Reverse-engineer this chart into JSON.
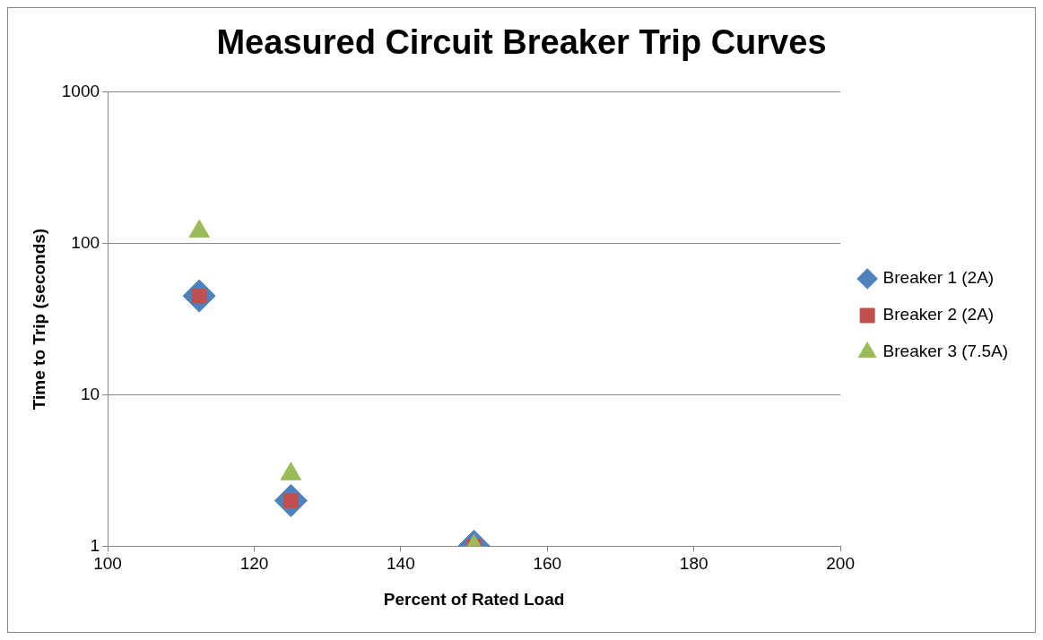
{
  "chart_data": {
    "type": "scatter",
    "title": "Measured Circuit Breaker Trip Curves",
    "xlabel": "Percent of Rated Load",
    "ylabel": "Time to Trip (seconds)",
    "x": [
      112.5,
      125,
      150
    ],
    "series": [
      {
        "name": "Breaker 1 (2A)",
        "color": "#4f81bd",
        "marker": "diamond",
        "values": [
          45,
          2,
          1
        ]
      },
      {
        "name": "Breaker 2 (2A)",
        "color": "#c0504d",
        "marker": "square",
        "values": [
          45,
          2,
          1
        ]
      },
      {
        "name": "Breaker 3 (7.5A)",
        "color": "#9bbb59",
        "marker": "triangle",
        "values": [
          120,
          3,
          1
        ]
      }
    ],
    "xlim": [
      100,
      200
    ],
    "xticks": [
      100,
      120,
      140,
      160,
      180,
      200
    ],
    "ylim": [
      1,
      1000
    ],
    "yticks": [
      1,
      10,
      100,
      1000
    ],
    "log": "y",
    "grid": "y",
    "legend": "right"
  }
}
